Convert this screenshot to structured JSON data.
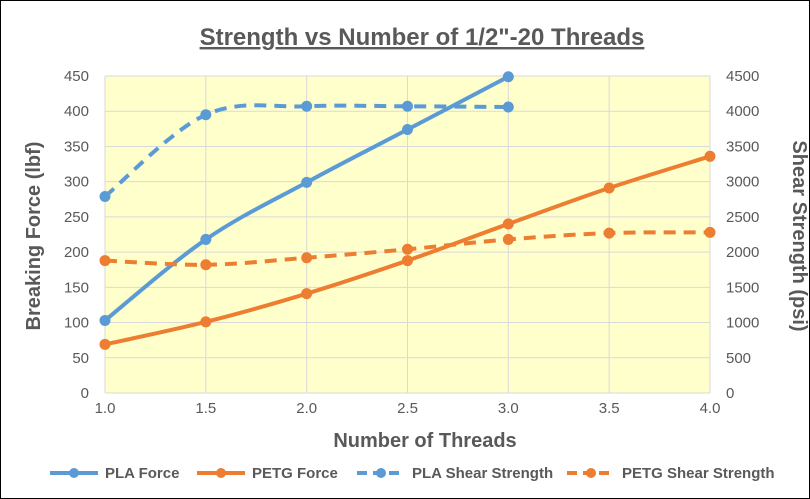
{
  "chart_data": {
    "type": "line",
    "title": "Strength vs Number of 1/2\"-20 Threads",
    "xlabel": "Number of Threads",
    "ylabel": "Breaking Force (lbf)",
    "y2label": "Shear Strength (psi)",
    "xlim": [
      1.0,
      4.0
    ],
    "ylim": [
      0,
      450
    ],
    "y2lim": [
      0,
      4500
    ],
    "x_ticks": [
      "1.0",
      "1.5",
      "2.0",
      "2.5",
      "3.0",
      "3.5",
      "4.0"
    ],
    "y_ticks": [
      "0",
      "50",
      "100",
      "150",
      "200",
      "250",
      "300",
      "350",
      "400",
      "450"
    ],
    "y2_ticks": [
      "0",
      "500",
      "1000",
      "1500",
      "2000",
      "2500",
      "3000",
      "3500",
      "4000",
      "4500"
    ],
    "grid": true,
    "plot_background": "#FFFFCC",
    "legend_position": "bottom",
    "series": [
      {
        "name": "PLA Force",
        "axis": "left",
        "dashed": false,
        "color": "#5B9BD5",
        "x": [
          1.0,
          1.5,
          2.0,
          2.5,
          3.0
        ],
        "values": [
          103,
          218,
          299,
          374,
          449
        ]
      },
      {
        "name": "PETG Force",
        "axis": "left",
        "dashed": false,
        "color": "#ED7D31",
        "x": [
          1.0,
          1.5,
          2.0,
          2.5,
          3.0,
          3.5,
          4.0
        ],
        "values": [
          69,
          101,
          141,
          188,
          240,
          291,
          336
        ]
      },
      {
        "name": "PLA Shear Strength",
        "axis": "right",
        "dashed": true,
        "color": "#5B9BD5",
        "x": [
          1.0,
          1.5,
          2.0,
          2.5,
          3.0
        ],
        "values": [
          2790,
          3950,
          4070,
          4070,
          4060
        ]
      },
      {
        "name": "PETG Shear Strength",
        "axis": "right",
        "dashed": true,
        "color": "#ED7D31",
        "x": [
          1.0,
          1.5,
          2.0,
          2.5,
          3.0,
          3.5,
          4.0
        ],
        "values": [
          1880,
          1820,
          1920,
          2040,
          2180,
          2270,
          2280
        ]
      }
    ]
  }
}
